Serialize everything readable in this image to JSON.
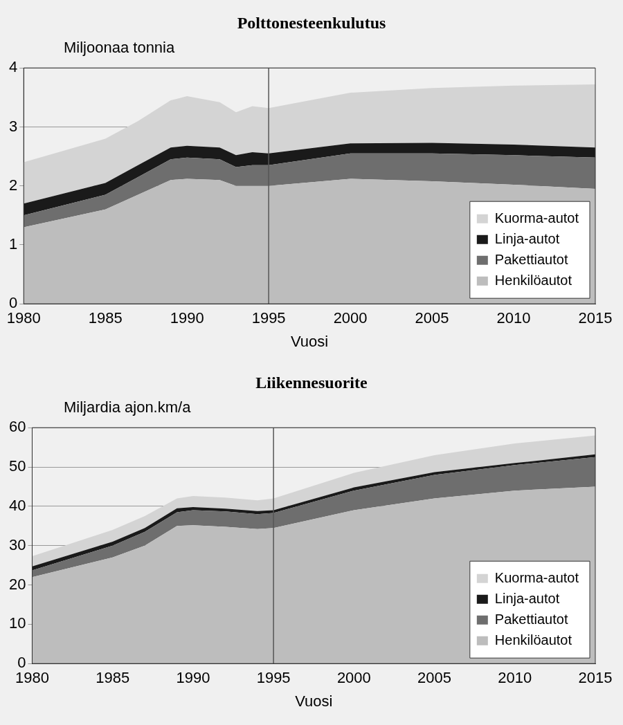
{
  "chart_data": [
    {
      "type": "area",
      "title": "Polttonesteenkulutus",
      "xlabel": "Vuosi",
      "ylabel": "Miljoonaa tonnia",
      "stacked": true,
      "x": [
        1980,
        1985,
        1987,
        1989,
        1990,
        1992,
        1993,
        1994,
        1995,
        2000,
        2005,
        2010,
        2015
      ],
      "series": [
        {
          "name": "Henkilöautot",
          "color": "#bdbdbd",
          "values": [
            1.3,
            1.6,
            1.85,
            2.1,
            2.12,
            2.1,
            2.0,
            2.0,
            2.0,
            2.12,
            2.08,
            2.02,
            1.95
          ]
        },
        {
          "name": "Pakettiautot",
          "color": "#6e6e6e",
          "values": [
            0.2,
            0.25,
            0.3,
            0.35,
            0.36,
            0.35,
            0.32,
            0.35,
            0.35,
            0.43,
            0.47,
            0.5,
            0.53
          ]
        },
        {
          "name": "Linja-autot",
          "color": "#1a1a1a",
          "values": [
            0.2,
            0.2,
            0.2,
            0.2,
            0.2,
            0.2,
            0.2,
            0.22,
            0.2,
            0.17,
            0.18,
            0.18,
            0.17
          ]
        },
        {
          "name": "Kuorma-autot",
          "color": "#d4d4d4",
          "values": [
            0.7,
            0.75,
            0.75,
            0.8,
            0.84,
            0.77,
            0.73,
            0.78,
            0.77,
            0.86,
            0.93,
            1.0,
            1.07
          ]
        }
      ],
      "xlim": [
        1980,
        2015
      ],
      "xticks": [
        1980,
        1985,
        1990,
        1995,
        2000,
        2005,
        2010,
        2015
      ],
      "ylim": [
        0,
        4
      ],
      "yticks": [
        0,
        1,
        2,
        3,
        4
      ],
      "grid": "y",
      "legend": "bottom right",
      "ref_lines": [
        {
          "axis": "x",
          "value": 1995,
          "color": "#555555"
        }
      ]
    },
    {
      "type": "area",
      "title": "Liikennesuorite",
      "xlabel": "Vuosi",
      "ylabel": "Miljardia ajon.km/a",
      "stacked": true,
      "x": [
        1980,
        1985,
        1987,
        1989,
        1990,
        1992,
        1994,
        1995,
        2000,
        2005,
        2010,
        2015
      ],
      "series": [
        {
          "name": "Henkilöautot",
          "color": "#bdbdbd",
          "values": [
            22,
            27,
            30,
            35,
            35.2,
            34.8,
            34.2,
            34.5,
            39,
            42,
            44,
            45
          ]
        },
        {
          "name": "Pakettiautot",
          "color": "#6e6e6e",
          "values": [
            1.7,
            3,
            3.5,
            3.5,
            3.8,
            3.9,
            3.8,
            3.8,
            5,
            6,
            6.5,
            7.5
          ]
        },
        {
          "name": "Linja-autot",
          "color": "#1a1a1a",
          "values": [
            1,
            1,
            1,
            1,
            0.8,
            0.7,
            0.8,
            0.7,
            0.8,
            0.7,
            0.5,
            0.7
          ]
        },
        {
          "name": "Kuorma-autot",
          "color": "#d4d4d4",
          "values": [
            2.6,
            3,
            3,
            2.5,
            2.8,
            2.8,
            2.7,
            3,
            3.7,
            4.3,
            5,
            4.8
          ]
        }
      ],
      "xlim": [
        1980,
        2015
      ],
      "xticks": [
        1980,
        1985,
        1990,
        1995,
        2000,
        2005,
        2010,
        2015
      ],
      "ylim": [
        0,
        60
      ],
      "yticks": [
        0,
        10,
        20,
        30,
        40,
        50,
        60
      ],
      "grid": "y",
      "legend": "bottom right",
      "ref_lines": [
        {
          "axis": "x",
          "value": 1995,
          "color": "#555555"
        }
      ]
    }
  ]
}
